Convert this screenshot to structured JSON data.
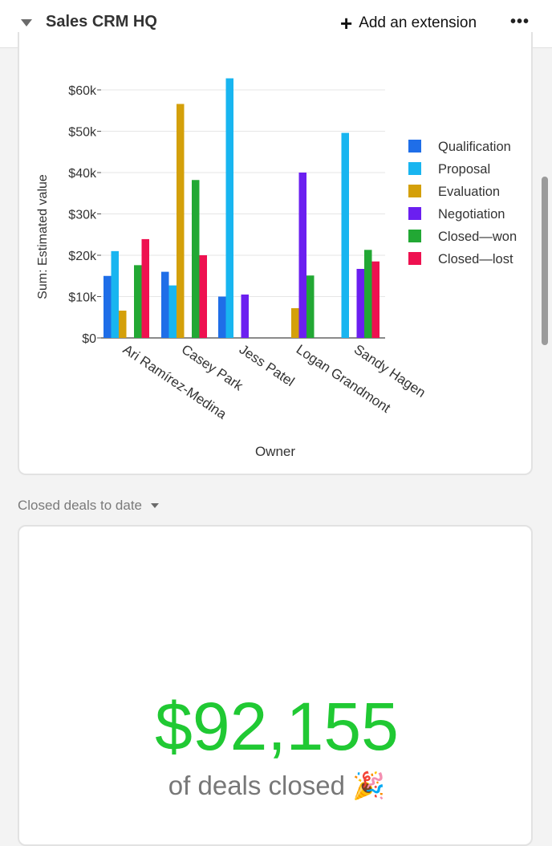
{
  "header": {
    "base_title": "Sales CRM HQ",
    "add_extension_label": "Add an extension",
    "plus_icon_glyph": "+",
    "more_glyph": "•••"
  },
  "chart_data": {
    "type": "bar",
    "xlabel": "Owner",
    "ylabel": "Sum: Estimated value",
    "ylim": [
      0,
      65000
    ],
    "yticks": [
      0,
      10000,
      20000,
      30000,
      40000,
      50000,
      60000
    ],
    "ytick_labels": [
      "$0",
      "$10k",
      "$20k",
      "$30k",
      "$40k",
      "$50k",
      "$60k"
    ],
    "categories": [
      "Ari Ramírez-Medina",
      "Casey Park",
      "Jess Patel",
      "Logan Grandmont",
      "Sandy Hagen"
    ],
    "legend_position": "right",
    "gridlines": true,
    "series": [
      {
        "name": "Qualification",
        "color": "#1f6ee8",
        "values": [
          15000,
          16000,
          10000,
          0,
          0
        ]
      },
      {
        "name": "Proposal",
        "color": "#18b5f0",
        "values": [
          21000,
          12700,
          62800,
          0,
          49600
        ]
      },
      {
        "name": "Evaluation",
        "color": "#d4a00a",
        "values": [
          6600,
          56600,
          0,
          7200,
          0
        ]
      },
      {
        "name": "Negotiation",
        "color": "#6b1ff0",
        "values": [
          0,
          0,
          10500,
          40000,
          16700
        ]
      },
      {
        "name": "Closed—won",
        "color": "#22a834",
        "values": [
          17600,
          38200,
          0,
          15100,
          21300
        ]
      },
      {
        "name": "Closed—lost",
        "color": "#ee1150",
        "values": [
          23900,
          20000,
          0,
          0,
          18500
        ]
      }
    ]
  },
  "summary": {
    "section_label": "Closed deals to date",
    "value": "$92,155",
    "caption": "of deals closed",
    "caption_emoji": "🎉",
    "value_color": "#20c933"
  }
}
